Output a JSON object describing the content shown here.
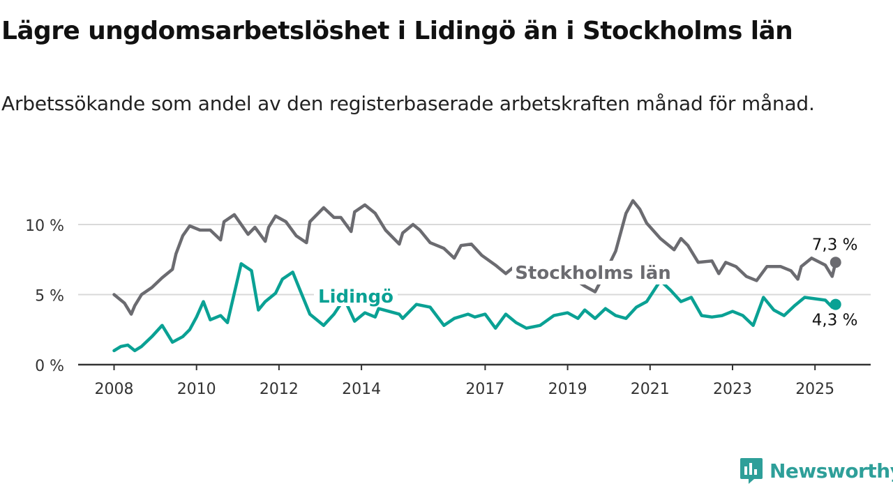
{
  "header": {
    "title": "Lägre ungdomsarbetslöshet i Lidingö än i Stockholms län",
    "subtitle": "Arbetssökande som andel av den registerbaserade arbetskraften månad för månad."
  },
  "brand": {
    "name": "Newsworthy",
    "icon": "newsworthy-logo-icon",
    "color": "#2e9f99"
  },
  "chart_data": {
    "type": "line",
    "x_ticks": [
      "2008",
      "2010",
      "2012",
      "2014",
      "2017",
      "2019",
      "2021",
      "2023",
      "2025"
    ],
    "y_ticks": [
      "0 %",
      "5 %",
      "10 %"
    ],
    "ylim": [
      0,
      12
    ],
    "grid": true,
    "series": [
      {
        "name": "Stockholms län",
        "color": "#6b6b70",
        "end_label": "7,3 %",
        "points": [
          [
            "2008-01",
            5.0
          ],
          [
            "2008-04",
            4.4
          ],
          [
            "2008-06",
            3.6
          ],
          [
            "2008-07",
            4.2
          ],
          [
            "2008-09",
            5.0
          ],
          [
            "2008-12",
            5.5
          ],
          [
            "2009-03",
            6.2
          ],
          [
            "2009-06",
            6.8
          ],
          [
            "2009-07",
            7.9
          ],
          [
            "2009-09",
            9.2
          ],
          [
            "2009-11",
            9.9
          ],
          [
            "2010-02",
            9.6
          ],
          [
            "2010-05",
            9.6
          ],
          [
            "2010-08",
            8.9
          ],
          [
            "2010-09",
            10.2
          ],
          [
            "2010-12",
            10.7
          ],
          [
            "2011-04",
            9.3
          ],
          [
            "2011-06",
            9.8
          ],
          [
            "2011-09",
            8.8
          ],
          [
            "2011-10",
            9.8
          ],
          [
            "2011-12",
            10.6
          ],
          [
            "2012-03",
            10.2
          ],
          [
            "2012-06",
            9.2
          ],
          [
            "2012-09",
            8.7
          ],
          [
            "2012-10",
            10.2
          ],
          [
            "2013-02",
            11.2
          ],
          [
            "2013-05",
            10.5
          ],
          [
            "2013-07",
            10.5
          ],
          [
            "2013-10",
            9.5
          ],
          [
            "2013-11",
            10.9
          ],
          [
            "2014-02",
            11.4
          ],
          [
            "2014-05",
            10.8
          ],
          [
            "2014-08",
            9.6
          ],
          [
            "2014-12",
            8.6
          ],
          [
            "2015-01",
            9.4
          ],
          [
            "2015-04",
            10.0
          ],
          [
            "2015-06",
            9.6
          ],
          [
            "2015-09",
            8.7
          ],
          [
            "2016-01",
            8.3
          ],
          [
            "2016-04",
            7.6
          ],
          [
            "2016-06",
            8.5
          ],
          [
            "2016-09",
            8.6
          ],
          [
            "2016-12",
            7.8
          ],
          [
            "2017-04",
            7.1
          ],
          [
            "2017-07",
            6.5
          ],
          [
            "2017-10",
            7.1
          ],
          [
            "2018-01",
            6.6
          ],
          [
            "2018-04",
            6.3
          ],
          [
            "2018-06",
            5.9
          ],
          [
            "2018-09",
            6.2
          ],
          [
            "2018-12",
            6.8
          ],
          [
            "2019-03",
            6.1
          ],
          [
            "2019-06",
            5.6
          ],
          [
            "2019-09",
            5.2
          ],
          [
            "2019-12",
            6.6
          ],
          [
            "2020-03",
            8.1
          ],
          [
            "2020-06",
            10.8
          ],
          [
            "2020-08",
            11.7
          ],
          [
            "2020-10",
            11.1
          ],
          [
            "2020-12",
            10.1
          ],
          [
            "2021-04",
            9.0
          ],
          [
            "2021-08",
            8.2
          ],
          [
            "2021-10",
            9.0
          ],
          [
            "2021-12",
            8.5
          ],
          [
            "2022-03",
            7.3
          ],
          [
            "2022-07",
            7.4
          ],
          [
            "2022-09",
            6.5
          ],
          [
            "2022-11",
            7.3
          ],
          [
            "2023-02",
            7.0
          ],
          [
            "2023-05",
            6.3
          ],
          [
            "2023-08",
            6.0
          ],
          [
            "2023-11",
            7.0
          ],
          [
            "2024-03",
            7.0
          ],
          [
            "2024-06",
            6.7
          ],
          [
            "2024-08",
            6.1
          ],
          [
            "2024-09",
            7.0
          ],
          [
            "2024-12",
            7.6
          ],
          [
            "2025-04",
            7.1
          ],
          [
            "2025-06",
            6.3
          ],
          [
            "2025-07",
            7.3
          ]
        ]
      },
      {
        "name": "Lidingö",
        "color": "#0aa194",
        "end_label": "4,3 %",
        "points": [
          [
            "2008-01",
            1.0
          ],
          [
            "2008-03",
            1.3
          ],
          [
            "2008-05",
            1.4
          ],
          [
            "2008-07",
            1.0
          ],
          [
            "2008-09",
            1.3
          ],
          [
            "2008-12",
            2.0
          ],
          [
            "2009-03",
            2.8
          ],
          [
            "2009-06",
            1.6
          ],
          [
            "2009-09",
            2.0
          ],
          [
            "2009-11",
            2.5
          ],
          [
            "2010-01",
            3.4
          ],
          [
            "2010-03",
            4.5
          ],
          [
            "2010-05",
            3.2
          ],
          [
            "2010-08",
            3.5
          ],
          [
            "2010-10",
            3.0
          ],
          [
            "2011-02",
            7.2
          ],
          [
            "2011-05",
            6.7
          ],
          [
            "2011-07",
            3.9
          ],
          [
            "2011-09",
            4.5
          ],
          [
            "2011-12",
            5.1
          ],
          [
            "2012-02",
            6.1
          ],
          [
            "2012-05",
            6.6
          ],
          [
            "2012-07",
            5.4
          ],
          [
            "2012-10",
            3.6
          ],
          [
            "2013-02",
            2.8
          ],
          [
            "2013-05",
            3.6
          ],
          [
            "2013-08",
            4.7
          ],
          [
            "2013-11",
            3.1
          ],
          [
            "2014-02",
            3.7
          ],
          [
            "2014-05",
            3.4
          ],
          [
            "2014-06",
            4.0
          ],
          [
            "2014-12",
            3.6
          ],
          [
            "2015-01",
            3.3
          ],
          [
            "2015-05",
            4.3
          ],
          [
            "2015-09",
            4.1
          ],
          [
            "2016-01",
            2.8
          ],
          [
            "2016-04",
            3.3
          ],
          [
            "2016-08",
            3.6
          ],
          [
            "2016-10",
            3.4
          ],
          [
            "2017-01",
            3.6
          ],
          [
            "2017-04",
            2.6
          ],
          [
            "2017-07",
            3.6
          ],
          [
            "2017-10",
            3.0
          ],
          [
            "2018-01",
            2.6
          ],
          [
            "2018-05",
            2.8
          ],
          [
            "2018-09",
            3.5
          ],
          [
            "2019-01",
            3.7
          ],
          [
            "2019-04",
            3.3
          ],
          [
            "2019-06",
            3.9
          ],
          [
            "2019-09",
            3.3
          ],
          [
            "2019-12",
            4.0
          ],
          [
            "2020-03",
            3.5
          ],
          [
            "2020-06",
            3.3
          ],
          [
            "2020-09",
            4.1
          ],
          [
            "2020-12",
            4.5
          ],
          [
            "2021-04",
            6.0
          ],
          [
            "2021-07",
            5.3
          ],
          [
            "2021-10",
            4.5
          ],
          [
            "2022-01",
            4.8
          ],
          [
            "2022-04",
            3.5
          ],
          [
            "2022-07",
            3.4
          ],
          [
            "2022-10",
            3.5
          ],
          [
            "2023-01",
            3.8
          ],
          [
            "2023-04",
            3.5
          ],
          [
            "2023-07",
            2.8
          ],
          [
            "2023-10",
            4.8
          ],
          [
            "2024-01",
            3.9
          ],
          [
            "2024-04",
            3.5
          ],
          [
            "2024-07",
            4.2
          ],
          [
            "2024-10",
            4.8
          ],
          [
            "2025-01",
            4.7
          ],
          [
            "2025-04",
            4.6
          ],
          [
            "2025-06",
            4.1
          ],
          [
            "2025-07",
            4.3
          ]
        ]
      }
    ]
  }
}
